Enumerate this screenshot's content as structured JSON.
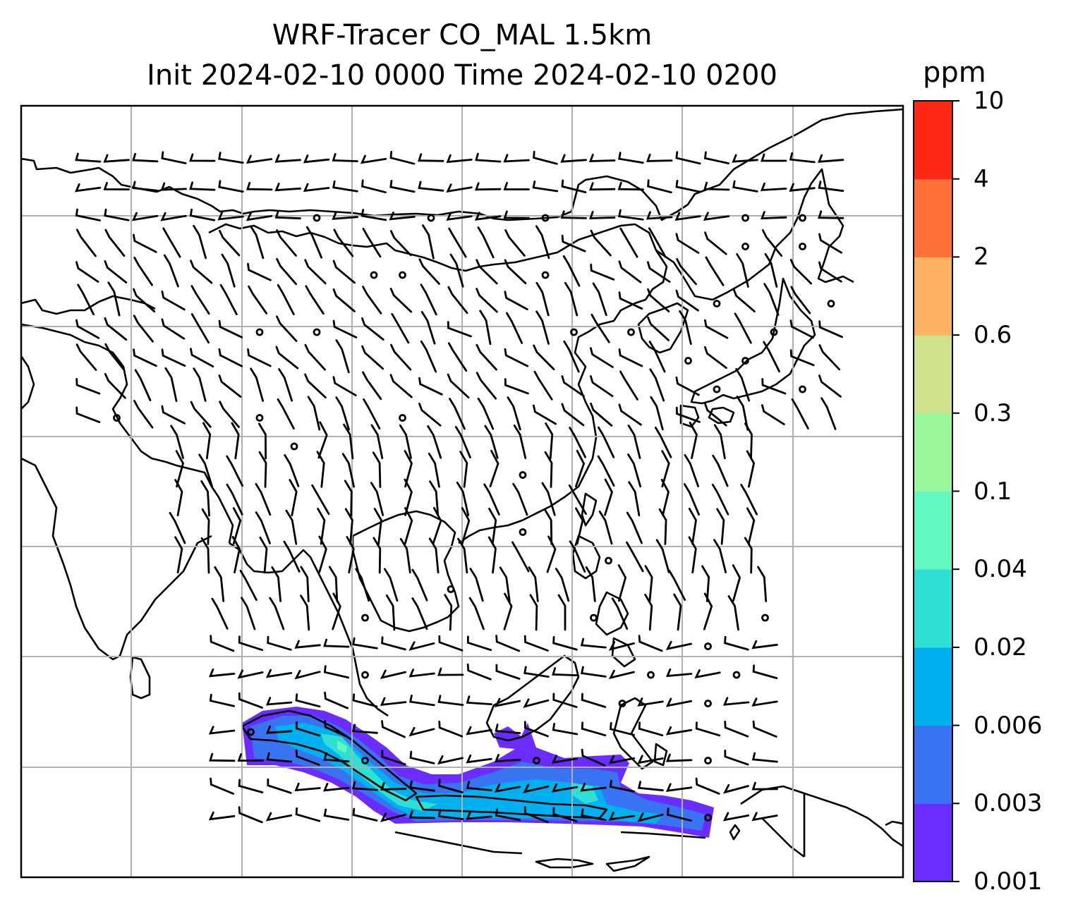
{
  "title": {
    "line1": "WRF-Tracer CO_MAL 1.5km",
    "line2": "Init 2024-02-10 0000 Time 2024-02-10 0200"
  },
  "colorbar": {
    "unit": "ppm",
    "ticks": [
      "0.001",
      "0.003",
      "0.006",
      "0.02",
      "0.04",
      "0.1",
      "0.3",
      "0.6",
      "2",
      "4",
      "10"
    ],
    "colors": [
      "#6a2cff",
      "#3874f2",
      "#00b0ef",
      "#2ee0d4",
      "#63f7c2",
      "#9af79b",
      "#cfe18a",
      "#fdb163",
      "#ff7139",
      "#ff2814"
    ]
  },
  "map": {
    "gridlines": true,
    "coastline_color": "#000000",
    "grid_color": "#b0b0b0"
  }
}
